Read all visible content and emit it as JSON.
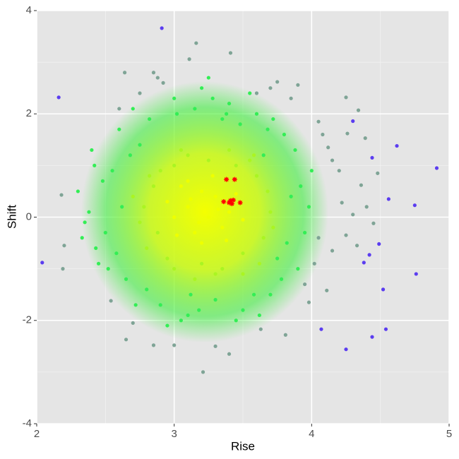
{
  "chart_data": {
    "type": "scatter",
    "x_label": "Rise",
    "y_label": "Shift",
    "xlim": [
      2,
      5
    ],
    "ylim": [
      -4,
      4
    ],
    "xticks": [
      2,
      3,
      4,
      5
    ],
    "yticks": [
      -4,
      -2,
      0,
      2,
      4
    ],
    "grid": true,
    "series": [
      {
        "color": "#7fa496",
        "x": [
          3.16,
          3.41,
          2.64,
          3.11,
          2.19,
          2.18,
          3.21,
          3.4,
          2.65,
          4.25,
          4.34,
          4.26,
          4.39,
          4.12,
          4.48,
          4.36,
          4.22,
          4.3,
          4.45,
          4.25,
          4.15,
          4.33,
          4.11,
          3.98,
          3.81,
          3.63,
          3.0,
          2.85,
          2.54,
          2.2,
          2.85,
          3.75,
          3.9,
          4.05,
          4.2,
          4.4,
          4.05,
          3.3,
          2.7,
          3.85,
          2.88,
          2.92,
          3.7,
          3.6,
          4.08,
          4.15,
          4.02,
          3.95,
          2.6,
          2.75
        ],
        "values": [
          3.37,
          3.18,
          2.8,
          3.06,
          -1.0,
          0.43,
          -3.0,
          -2.65,
          -2.37,
          2.32,
          2.07,
          1.62,
          1.53,
          1.35,
          0.85,
          0.62,
          0.28,
          0.05,
          -0.12,
          -0.35,
          -0.65,
          -0.55,
          -1.42,
          -1.65,
          -2.28,
          -2.17,
          -2.48,
          -2.48,
          -1.62,
          -0.55,
          2.8,
          2.62,
          2.56,
          1.85,
          0.9,
          0.2,
          -0.4,
          -2.5,
          -2.05,
          2.3,
          2.7,
          2.6,
          2.5,
          2.4,
          1.6,
          1.1,
          -0.9,
          -1.3,
          2.1,
          2.4
        ]
      },
      {
        "color": "#5b3df0",
        "x": [
          2.16,
          2.04,
          2.91,
          4.25,
          4.44,
          4.91,
          4.62,
          4.54,
          4.07,
          4.76,
          4.75,
          4.56,
          4.38,
          4.49,
          4.52,
          4.44,
          4.3,
          4.42
        ],
        "values": [
          2.32,
          -0.88,
          3.66,
          -2.56,
          -2.32,
          0.95,
          1.38,
          -2.17,
          -2.17,
          -1.1,
          0.23,
          0.35,
          -0.88,
          -0.52,
          -1.4,
          1.15,
          1.86,
          -0.73
        ]
      },
      {
        "color": "#33ee55",
        "x": [
          2.3,
          2.4,
          2.5,
          2.6,
          2.7,
          2.8,
          2.9,
          3.0,
          3.1,
          3.2,
          3.3,
          3.4,
          3.5,
          3.6,
          3.7,
          3.8,
          3.9,
          4.0,
          3.95,
          3.85,
          2.45,
          2.55,
          2.65,
          2.75,
          2.35,
          3.75,
          3.65,
          3.55,
          3.25,
          3.05,
          2.42,
          2.52,
          2.62,
          2.72,
          2.82,
          2.95,
          3.15,
          3.35,
          3.45,
          3.58,
          3.68,
          3.78,
          3.88,
          3.92,
          3.82,
          3.72,
          2.38,
          2.48,
          2.58,
          2.68,
          3.02,
          3.18,
          3.28,
          3.48,
          3.62,
          3.98,
          2.33,
          2.43,
          3.12,
          3.38
        ],
        "values": [
          0.5,
          1.3,
          -0.3,
          1.7,
          2.1,
          -1.4,
          -1.7,
          2.3,
          -1.9,
          2.5,
          -1.6,
          2.2,
          -1.8,
          2.0,
          -1.5,
          1.6,
          -1.0,
          0.9,
          -0.3,
          0.4,
          -0.9,
          0.9,
          -1.2,
          1.4,
          -0.1,
          -0.8,
          1.2,
          2.4,
          2.7,
          -2.0,
          1.0,
          -1.0,
          0.2,
          -1.7,
          1.9,
          -2.1,
          2.1,
          1.9,
          -2.0,
          -1.5,
          1.7,
          -1.2,
          1.3,
          0.6,
          -0.5,
          1.9,
          0.1,
          0.7,
          -0.7,
          1.2,
          2.0,
          -1.8,
          2.3,
          1.8,
          -1.9,
          0.2,
          -0.4,
          -0.6,
          -1.5,
          2.0
        ]
      },
      {
        "color": "#aaf522",
        "x": [
          2.7,
          2.8,
          2.9,
          3.0,
          3.1,
          3.3,
          3.4,
          3.5,
          3.6,
          3.7,
          3.65,
          2.75,
          3.2,
          3.0,
          2.85,
          2.95,
          3.15,
          3.25,
          3.45,
          3.55,
          3.62,
          3.68,
          2.78,
          2.88,
          3.35,
          3.05,
          3.5,
          2.82,
          3.72,
          3.58
        ],
        "values": [
          0.4,
          -0.6,
          0.9,
          -1.0,
          1.2,
          -1.1,
          1.3,
          -0.7,
          0.8,
          0.1,
          -0.4,
          -0.1,
          -0.9,
          1.0,
          0.6,
          -0.8,
          -1.2,
          1.1,
          1.0,
          1.1,
          -0.9,
          0.5,
          0.2,
          -0.3,
          -1.0,
          1.3,
          -1.1,
          0.8,
          -0.2,
          1.2
        ]
      },
      {
        "color": "#eeff00",
        "x": [
          3.1,
          3.2,
          3.25,
          3.3,
          3.15,
          3.35,
          3.05,
          3.4,
          3.0,
          3.2,
          2.95,
          3.1,
          3.28,
          3.45,
          3.5,
          3.18,
          3.38,
          3.02,
          3.12,
          3.32
        ],
        "values": [
          0.2,
          0.5,
          0.0,
          0.4,
          -0.3,
          -0.2,
          0.6,
          0.1,
          0.0,
          -0.5,
          0.3,
          0.7,
          0.8,
          0.45,
          -0.05,
          -0.1,
          -0.45,
          -0.35,
          0.35,
          0.15
        ]
      },
      {
        "color": "#ff0000",
        "marker": "star",
        "x": [
          3.38,
          3.44,
          3.41,
          3.43,
          3.36,
          3.48,
          3.42,
          3.4
        ],
        "values": [
          0.73,
          0.73,
          0.32,
          0.33,
          0.3,
          0.28,
          0.26,
          0.28
        ]
      }
    ]
  }
}
